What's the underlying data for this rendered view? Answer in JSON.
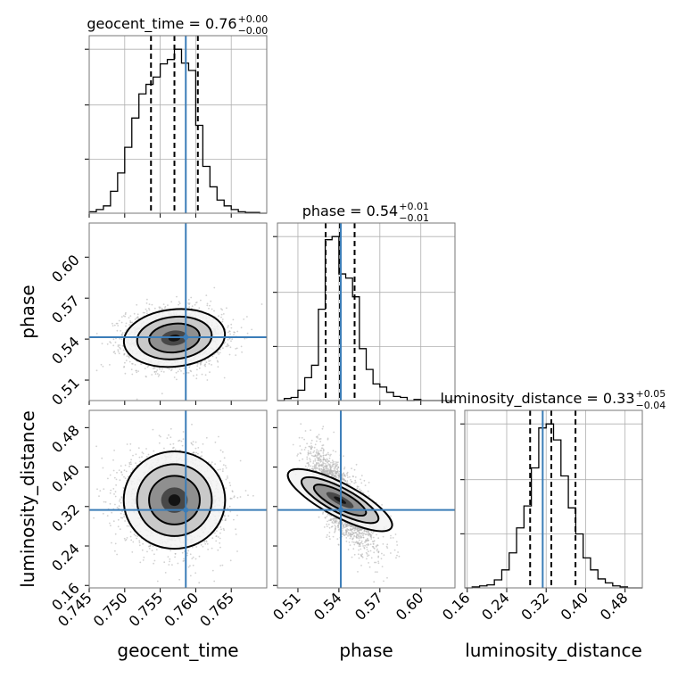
{
  "chart_data": {
    "type": "corner",
    "parameters": [
      "geocent_time",
      "phase",
      "luminosity_distance"
    ],
    "colors": {
      "truth": "#3b7db8",
      "histogram": "#000000",
      "contour_fills": [
        "#f3f3f3",
        "#c6c6c6",
        "#8c8c8c",
        "#444444",
        "#111111"
      ],
      "scatter": "#b3b3b3"
    },
    "ranges": {
      "geocent_time": [
        0.745,
        0.77
      ],
      "phase": [
        0.495,
        0.625
      ],
      "luminosity_distance": [
        0.155,
        0.515
      ]
    },
    "ticks": {
      "geocent_time": [
        0.745,
        0.75,
        0.755,
        0.76,
        0.765
      ],
      "phase": [
        0.51,
        0.54,
        0.57,
        0.6
      ],
      "luminosity_distance": [
        0.16,
        0.24,
        0.32,
        0.4,
        0.48
      ]
    },
    "tick_labels": {
      "geocent_time": [
        "0.745",
        "0.750",
        "0.755",
        "0.760",
        "0.765"
      ],
      "phase": [
        "0.51",
        "0.54",
        "0.57",
        "0.60"
      ],
      "luminosity_distance": [
        "0.16",
        "0.24",
        "0.32",
        "0.40",
        "0.48"
      ]
    },
    "truths": {
      "geocent_time": 0.7586,
      "phase": 0.5414,
      "luminosity_distance": 0.313
    },
    "quantiles": {
      "geocent_time": [
        0.7537,
        0.757,
        0.7603
      ],
      "phase": [
        0.5303,
        0.5408,
        0.5515
      ],
      "luminosity_distance": [
        0.2875,
        0.3305,
        0.3795
      ]
    },
    "diagonal_titles": [
      {
        "param": "geocent_time",
        "text": "geocent_time = 0.76",
        "sup": "+0.00",
        "sub": "−0.00"
      },
      {
        "param": "phase",
        "text": "phase = 0.54",
        "sup": "+0.01",
        "sub": "−0.01"
      },
      {
        "param": "luminosity_distance",
        "text": "luminosity_distance = 0.33",
        "sup": "+0.05",
        "sub": "−0.04"
      }
    ],
    "histograms": {
      "geocent_time": {
        "bin_edges": [
          0.745,
          0.746,
          0.747,
          0.748,
          0.749,
          0.75,
          0.751,
          0.752,
          0.753,
          0.754,
          0.755,
          0.756,
          0.757,
          0.758,
          0.759,
          0.76,
          0.761,
          0.762,
          0.763,
          0.764,
          0.765,
          0.766,
          0.767,
          0.768,
          0.769,
          0.77
        ],
        "counts": [
          2,
          5,
          10,
          30,
          55,
          90,
          130,
          163,
          176,
          186,
          204,
          210,
          224,
          205,
          195,
          120,
          64,
          36,
          18,
          10,
          5,
          2,
          1,
          1,
          0
        ]
      },
      "phase": {
        "bin_edges": [
          0.495,
          0.5,
          0.505,
          0.51,
          0.515,
          0.52,
          0.525,
          0.53,
          0.535,
          0.54,
          0.545,
          0.55,
          0.555,
          0.56,
          0.565,
          0.57,
          0.575,
          0.58,
          0.585,
          0.59,
          0.595,
          0.6,
          0.605,
          0.61,
          0.615,
          0.62,
          0.625
        ],
        "counts": [
          0,
          2,
          3,
          10,
          22,
          34,
          88,
          155,
          158,
          122,
          118,
          100,
          50,
          30,
          16,
          13,
          8,
          4,
          3,
          0,
          1,
          0,
          0,
          0,
          0,
          0
        ]
      },
      "luminosity_distance": {
        "bin_edges": [
          0.155,
          0.17,
          0.185,
          0.2,
          0.215,
          0.23,
          0.245,
          0.26,
          0.275,
          0.29,
          0.305,
          0.32,
          0.335,
          0.35,
          0.365,
          0.38,
          0.395,
          0.41,
          0.425,
          0.44,
          0.455,
          0.47,
          0.485,
          0.5,
          0.515
        ],
        "counts": [
          0,
          1,
          2,
          3,
          8,
          18,
          35,
          60,
          82,
          120,
          160,
          164,
          148,
          112,
          80,
          54,
          30,
          18,
          9,
          5,
          2,
          1,
          0,
          0
        ]
      }
    },
    "scatter_seed_note": "",
    "samples": {
      "geocent_time": {
        "mean": 0.757,
        "sd": 0.0034
      },
      "phase": {
        "mean": 0.5408,
        "sd": 0.0105
      },
      "luminosity_distance": {
        "mean": 0.333,
        "sd": 0.047
      },
      "correlation_phase_vs_distance": -0.72
    }
  }
}
